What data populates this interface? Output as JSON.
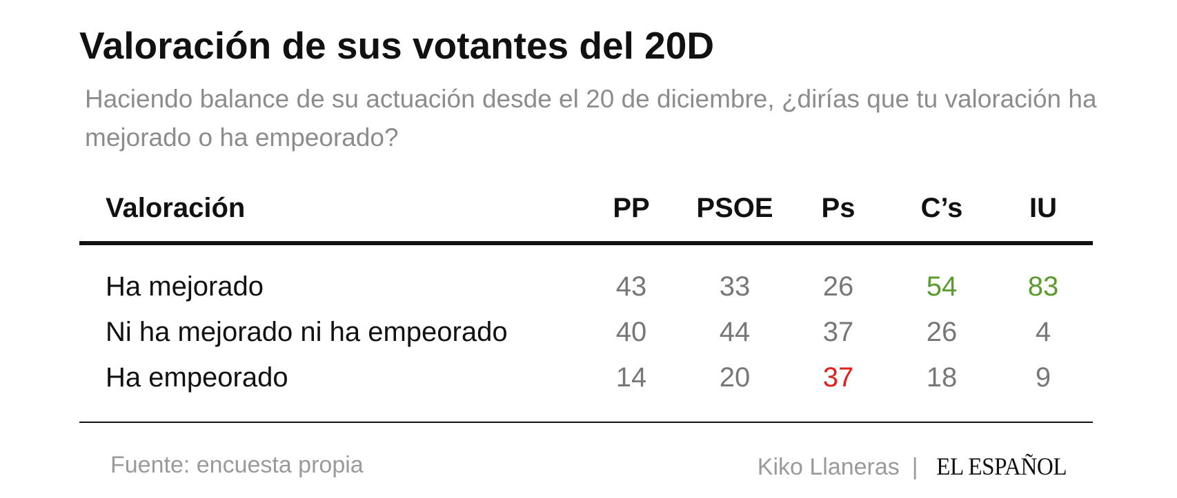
{
  "title": "Valoración de sus votantes del 20D",
  "subtitle": "Haciendo balance de su actuación desde el 20 de diciembre, ¿dirías que tu valoración ha mejorado o ha empeorado?",
  "colors": {
    "positive": "#5a9a2e",
    "negative": "#e0201c",
    "neutral": "#777777"
  },
  "chart_data": {
    "type": "table",
    "row_header": "Valoración",
    "columns": [
      "PP",
      "PSOE",
      "Ps",
      "C’s",
      "IU"
    ],
    "rows": [
      {
        "label": "Ha mejorado",
        "values": [
          43,
          33,
          26,
          54,
          83
        ],
        "highlight": [
          null,
          null,
          null,
          "positive",
          "positive"
        ]
      },
      {
        "label": "Ni ha mejorado ni ha empeorado",
        "values": [
          40,
          44,
          37,
          26,
          4
        ],
        "highlight": [
          null,
          null,
          null,
          null,
          null
        ]
      },
      {
        "label": "Ha empeorado",
        "values": [
          14,
          20,
          37,
          18,
          9
        ],
        "highlight": [
          null,
          null,
          "negative",
          null,
          null
        ]
      }
    ]
  },
  "source": "Fuente: encuesta propia",
  "author": "Kiko Llaneras",
  "separator": "|",
  "brand": "EL ESPAÑOL"
}
